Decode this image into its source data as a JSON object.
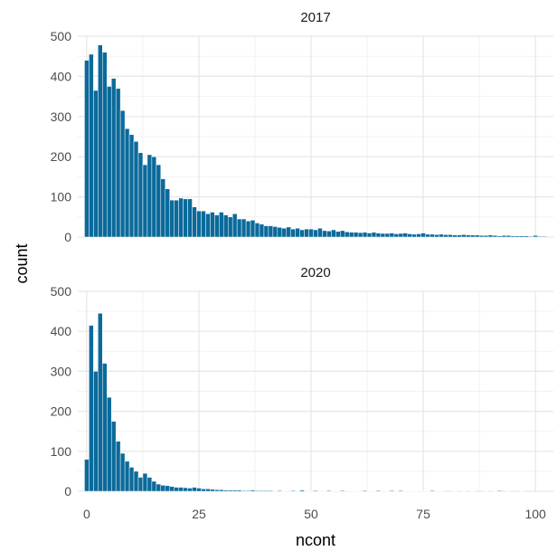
{
  "chart_data": {
    "type": "bar",
    "subtype": "faceted-histogram",
    "xlabel": "ncont",
    "ylabel": "count",
    "xlim": [
      -2,
      104
    ],
    "ylim": [
      0,
      500
    ],
    "x_ticks": [
      0,
      25,
      50,
      75,
      100
    ],
    "x_tick_labels": [
      "0",
      "25",
      "50",
      "75",
      "100"
    ],
    "y_ticks": [
      0,
      100,
      200,
      300,
      400,
      500
    ],
    "y_tick_labels": [
      "0",
      "100",
      "200",
      "300",
      "400",
      "500"
    ],
    "grid": true,
    "bar_color": "#0b6a9b",
    "bar_outline": "#ffffff",
    "bin_width": 1,
    "panels": [
      {
        "facet": "2017",
        "bins": [
          0,
          1,
          2,
          3,
          4,
          5,
          6,
          7,
          8,
          9,
          10,
          11,
          12,
          13,
          14,
          15,
          16,
          17,
          18,
          19,
          20,
          21,
          22,
          23,
          24,
          25,
          26,
          27,
          28,
          29,
          30,
          31,
          32,
          33,
          34,
          35,
          36,
          37,
          38,
          39,
          40,
          41,
          42,
          43,
          44,
          45,
          46,
          47,
          48,
          49,
          50,
          51,
          52,
          53,
          54,
          55,
          56,
          57,
          58,
          59,
          60,
          61,
          62,
          63,
          64,
          65,
          66,
          67,
          68,
          69,
          70,
          71,
          72,
          73,
          74,
          75,
          76,
          77,
          78,
          79,
          80,
          81,
          82,
          83,
          84,
          85,
          86,
          87,
          88,
          89,
          90,
          91,
          92,
          93,
          94,
          95,
          96,
          97,
          98,
          99,
          100,
          101,
          102
        ],
        "counts": [
          440,
          455,
          365,
          478,
          460,
          375,
          395,
          370,
          315,
          270,
          255,
          238,
          210,
          180,
          205,
          200,
          180,
          145,
          120,
          92,
          92,
          97,
          95,
          95,
          75,
          65,
          65,
          58,
          62,
          55,
          62,
          55,
          50,
          58,
          45,
          45,
          40,
          42,
          35,
          32,
          28,
          28,
          26,
          24,
          22,
          25,
          20,
          22,
          18,
          20,
          20,
          18,
          22,
          16,
          15,
          18,
          14,
          16,
          13,
          12,
          12,
          11,
          12,
          10,
          12,
          10,
          9,
          9,
          10,
          8,
          9,
          10,
          8,
          7,
          8,
          10,
          7,
          7,
          6,
          7,
          6,
          6,
          5,
          5,
          6,
          5,
          5,
          5,
          4,
          4,
          5,
          4,
          3,
          4,
          4,
          3,
          3,
          3,
          3,
          2,
          4,
          2,
          2
        ]
      },
      {
        "facet": "2020",
        "bins": [
          0,
          1,
          2,
          3,
          4,
          5,
          6,
          7,
          8,
          9,
          10,
          11,
          12,
          13,
          14,
          15,
          16,
          17,
          18,
          19,
          20,
          21,
          22,
          23,
          24,
          25,
          26,
          27,
          28,
          29,
          30,
          31,
          32,
          33,
          34,
          35,
          36,
          37,
          38,
          39,
          40,
          41,
          42,
          43,
          44,
          45,
          46,
          47,
          48,
          49,
          50,
          51,
          52,
          53,
          54,
          55,
          56,
          57,
          58,
          59,
          60,
          61,
          62,
          63,
          64,
          65,
          66,
          67,
          68,
          69,
          70,
          71,
          72,
          73,
          74,
          75,
          76,
          77,
          78,
          79,
          80,
          81,
          82,
          83,
          84,
          85,
          86,
          87,
          88,
          89,
          90,
          91,
          92,
          93,
          94,
          95,
          96,
          97,
          98,
          99,
          100,
          101,
          102
        ],
        "counts": [
          80,
          415,
          300,
          445,
          320,
          235,
          175,
          125,
          95,
          75,
          60,
          50,
          35,
          45,
          35,
          25,
          18,
          15,
          14,
          12,
          10,
          10,
          9,
          8,
          10,
          8,
          6,
          6,
          5,
          4,
          4,
          3,
          3,
          3,
          3,
          2,
          2,
          3,
          2,
          2,
          2,
          2,
          1,
          2,
          1,
          1,
          2,
          1,
          3,
          1,
          1,
          2,
          1,
          1,
          2,
          1,
          1,
          2,
          1,
          1,
          1,
          1,
          2,
          1,
          1,
          2,
          1,
          1,
          2,
          1,
          2,
          1,
          1,
          1,
          1,
          1,
          1,
          2,
          1,
          1,
          0,
          0,
          1,
          0,
          1,
          0,
          1,
          0,
          0,
          1,
          0,
          1,
          2,
          0,
          1,
          0,
          0,
          1,
          0,
          0,
          0,
          0,
          0
        ]
      }
    ]
  }
}
